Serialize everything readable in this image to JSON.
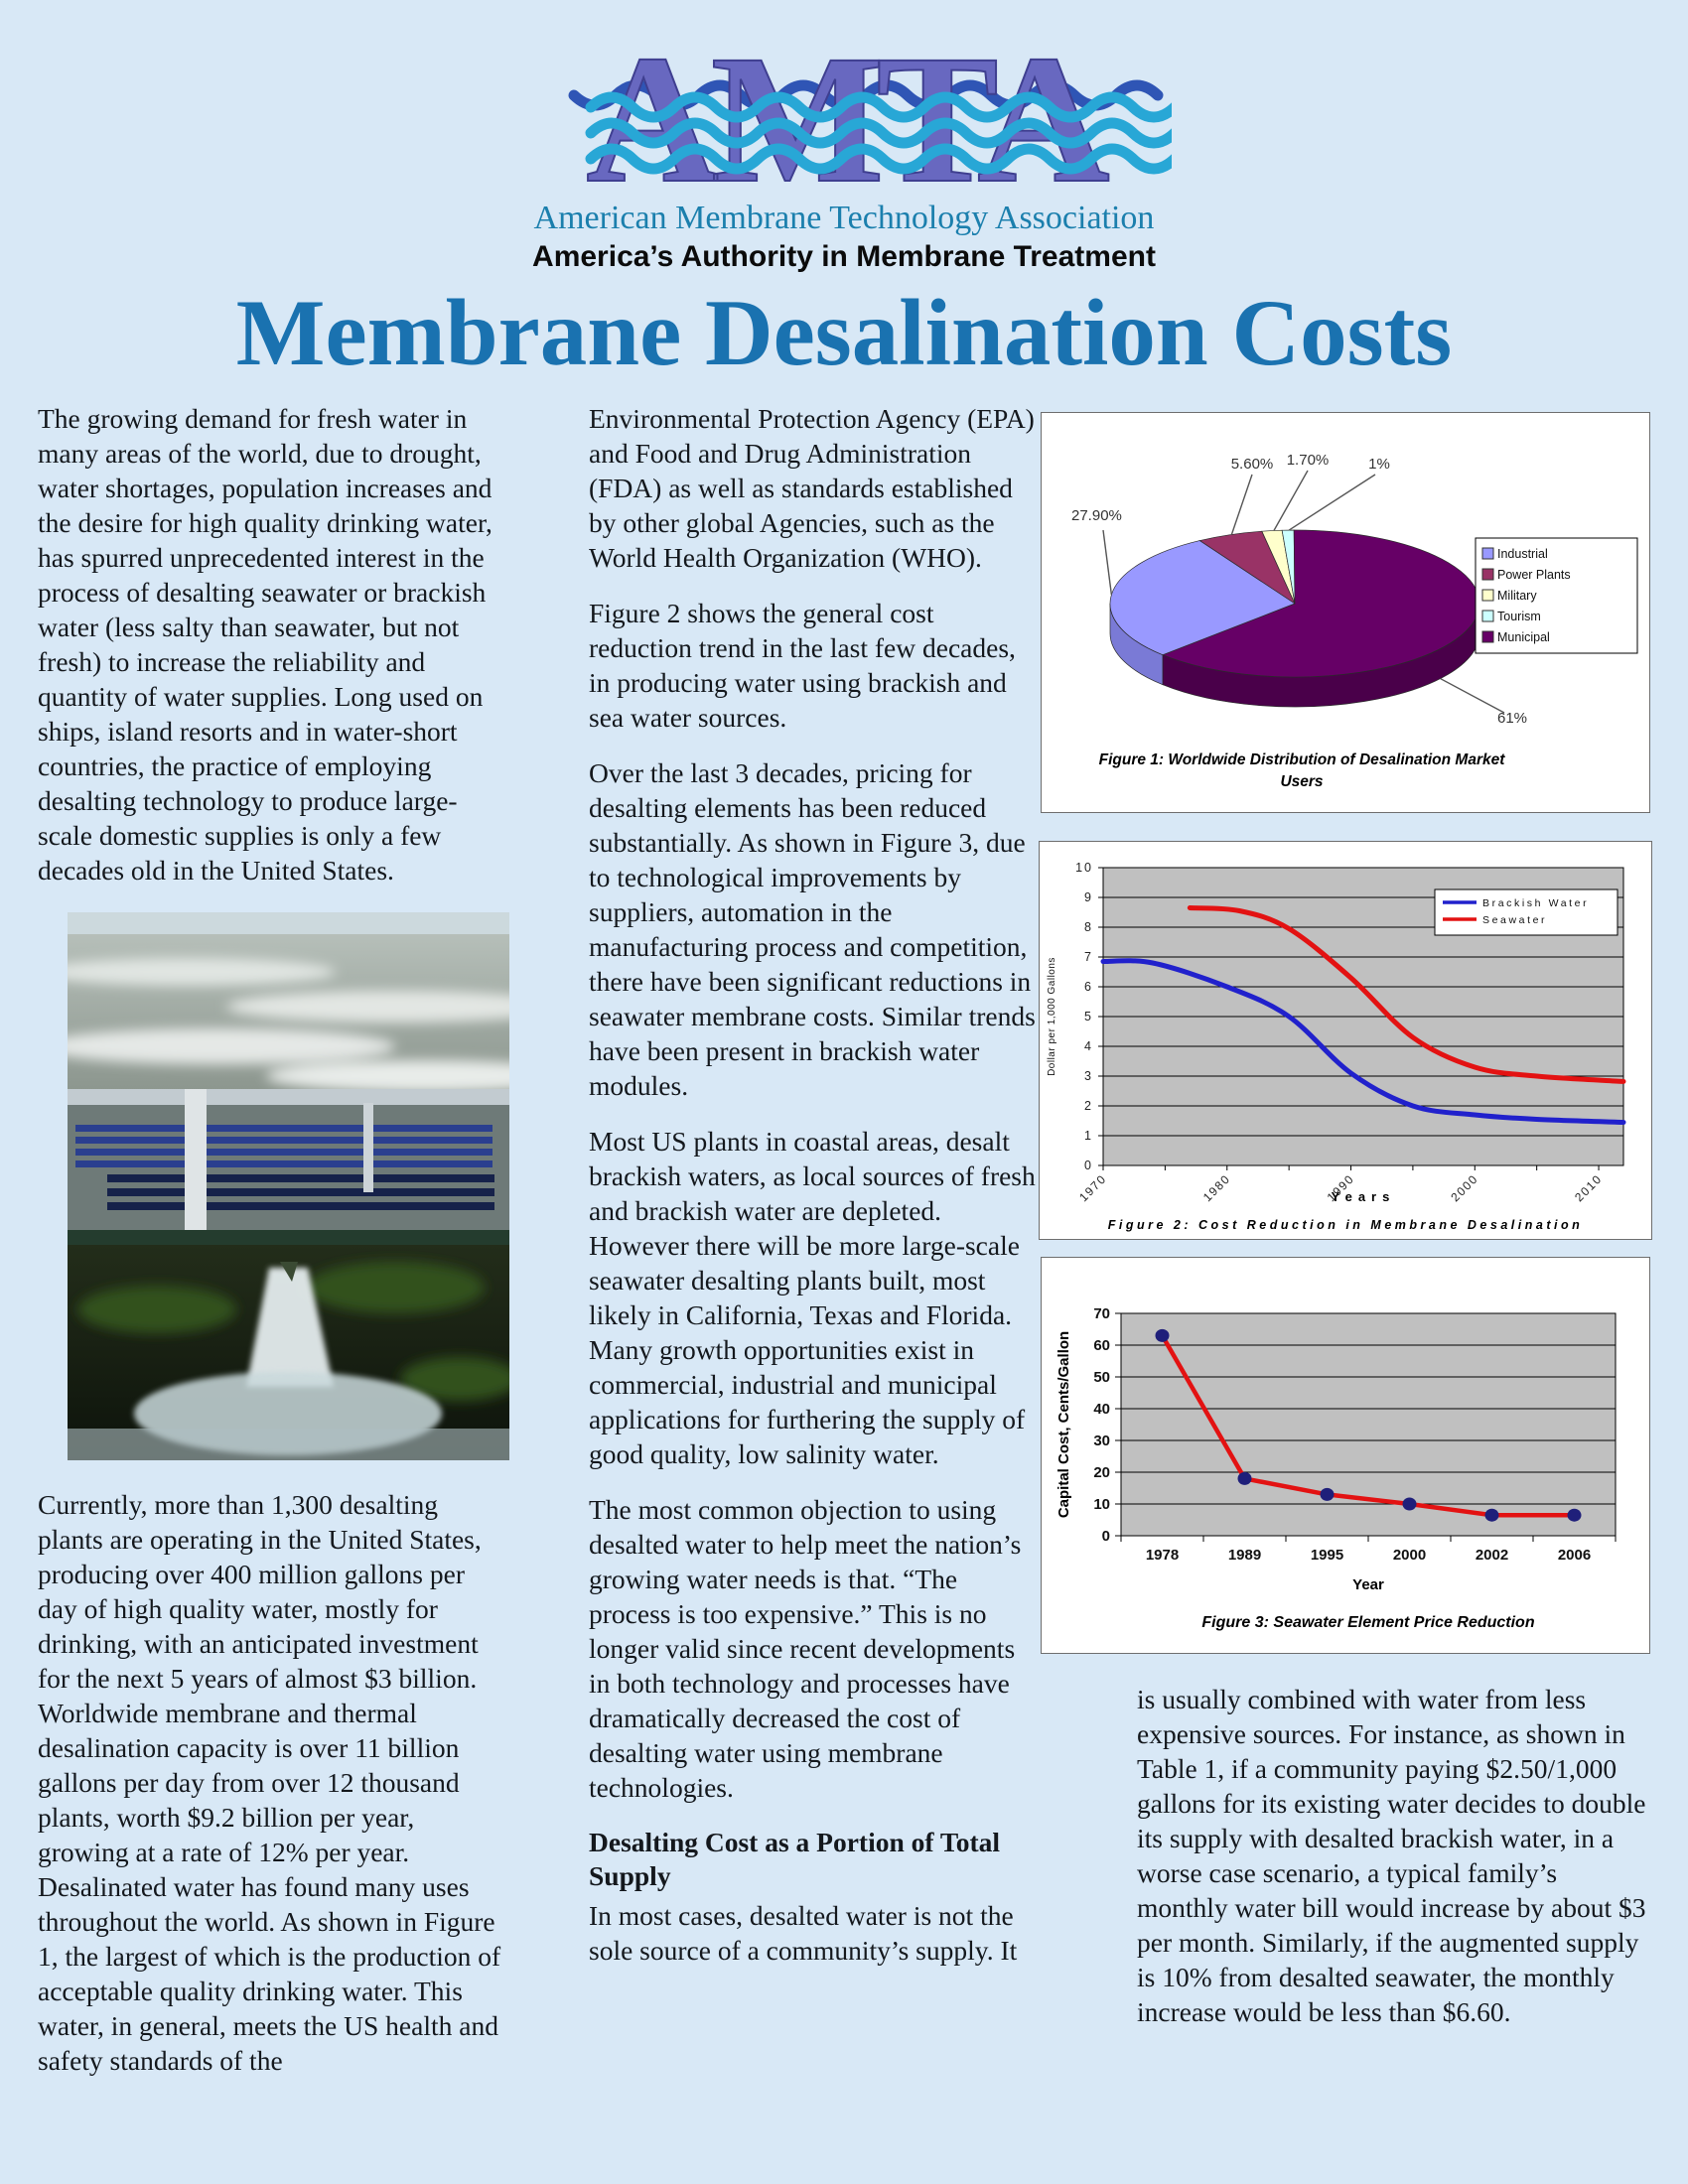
{
  "header": {
    "logo_acronym": "AMTA",
    "logo_org_name": "American Membrane Technology Association",
    "logo_tagline": "America’s Authority in Membrane Treatment"
  },
  "title": "Membrane Desalination Costs",
  "article": {
    "left_column": {
      "para1": "The growing demand for fresh water in many areas of the world, due to drought, water shortages, population increases and the desire for high quality drinking water, has spurred unprecedented interest in the process of desalting seawater or brackish water (less salty than seawater, but not fresh) to increase the reliability and quantity of water supplies. Long used on ships, island resorts and in water-short countries, the practice of employing desalting technology to produce large-scale domestic supplies is only a few decades old in the United States.",
      "para2": "Currently, more than 1,300 desalting plants are operating in the United States, producing over 400 million gallons per day of high quality water, mostly for drinking, with an anticipated investment for the next 5 years of almost $3 billion. Worldwide membrane and thermal desalination capacity is over 11 billion gallons per day from over 12 thousand plants, worth $9.2 billion per year, growing at a rate of 12% per year. Desalinated water has found many uses throughout the world. As shown in Figure 1, the largest of which is the production of acceptable quality drinking water. This water, in general, meets the US health and safety standards of the"
    },
    "middle_column": {
      "para1": "Environmental Protection Agency (EPA) and Food and Drug Administration (FDA) as well as standards established by other global Agencies, such as the World Health Organization (WHO).",
      "para2": "Figure 2 shows the general cost reduction trend in the last few decades, in producing water using brackish and sea water sources.",
      "para3": "Over the last 3 decades, pricing for desalting elements has been reduced substantially. As shown in Figure 3, due to technological improvements by suppliers, automation in the manufacturing process and competition, there have been significant reductions in seawater membrane costs. Similar trends have been present in brackish water modules.",
      "para4": "Most US plants in coastal areas, desalt brackish waters, as local sources of fresh and brackish water are depleted. However there will be more large-scale seawater desalting plants built, most likely in California, Texas and Florida. Many growth opportunities exist in commercial, industrial and municipal applications for furthering the supply of good quality, low salinity water.",
      "para5": "The most common objection to using desalted water to help meet the nation’s growing water needs is that. “The process is too expensive.” This is no longer valid since recent developments in both technology and processes have dramatically decreased the cost of desalting water using membrane technologies.",
      "heading": "Desalting Cost as a Portion of Total Supply",
      "para6": "In most cases, desalted water is not the sole source of a community’s supply. It"
    },
    "right_column": {
      "para1": "is usually combined with water from less expensive sources. For instance, as shown in Table 1, if a community paying $2.50/1,000 gallons for its existing water decides to double its supply with desalted brackish water, in a worse case scenario, a typical family’s monthly water bill would increase by about $3 per month. Similarly, if the augmented supply is 10% from desalted seawater, the monthly increase would be less than $6.60."
    }
  },
  "colors": {
    "page_background": "#d8e8f6",
    "title_blue": "#1a72b0",
    "logo_purple": "#6868c0",
    "logo_wave_cyan": "#28a7d6",
    "logo_wave_blue": "#2f55b5",
    "org_name_teal": "#1b7fad",
    "chart_plot_gray": "#c0c0c0",
    "brackish_line": "#2121cc",
    "seawater_line": "#e31212",
    "fig3_marker_navy": "#1f1f7a"
  },
  "chart_data": [
    {
      "id": "fig1",
      "type": "pie",
      "style": "3d",
      "title": "Figure 1: Worldwide Distribution of Desalination Market Users",
      "title_line1": "Figure 1: Worldwide Distribution of Desalination Market",
      "title_line2": "Users",
      "slices": [
        {
          "label": "Industrial",
          "value": 27.9,
          "display": "27.90%",
          "color": "#9999FF",
          "side": "#7a7ad6"
        },
        {
          "label": "Power Plants",
          "value": 5.6,
          "display": "5.60%",
          "color": "#993366",
          "side": "#7a2952"
        },
        {
          "label": "Military",
          "value": 1.7,
          "display": "1.70%",
          "color": "#FFFFCC",
          "side": "#d9d9a8"
        },
        {
          "label": "Tourism",
          "value": 1.0,
          "display": "1%",
          "color": "#CCFFFF",
          "side": "#a8d9d9"
        },
        {
          "label": "Municipal",
          "value": 61.0,
          "display": "61%",
          "color": "#660066",
          "side": "#4a004a"
        }
      ],
      "legend": [
        "Industrial",
        "Power Plants",
        "Military",
        "Tourism",
        "Municipal"
      ],
      "legend_position": "right"
    },
    {
      "id": "fig2",
      "type": "line",
      "title": "Figure 2: Cost Reduction in Membrane Desalination",
      "xlabel": "Years",
      "ylabel": "Dollar per 1,000 Gallons",
      "xlim": [
        1970,
        2012
      ],
      "ylim": [
        0,
        10
      ],
      "x_ticks": [
        1970,
        1980,
        1990,
        2000,
        2010
      ],
      "y_ticks": [
        0,
        1,
        2,
        3,
        4,
        5,
        6,
        7,
        8,
        9,
        10
      ],
      "grid": "horizontal",
      "plot_bg": "#c0c0c0",
      "legend_position": "top-right",
      "series": [
        {
          "name": "Brackish Water",
          "color": "#2121cc",
          "points": [
            [
              1970,
              6.85
            ],
            [
              1974,
              6.8
            ],
            [
              1980,
              6.0
            ],
            [
              1985,
              5.0
            ],
            [
              1990,
              3.1
            ],
            [
              1995,
              2.0
            ],
            [
              2000,
              1.7
            ],
            [
              2005,
              1.55
            ],
            [
              2012,
              1.45
            ]
          ]
        },
        {
          "name": "Seawater",
          "color": "#e31212",
          "points": [
            [
              1977,
              8.65
            ],
            [
              1981,
              8.55
            ],
            [
              1985,
              7.95
            ],
            [
              1990,
              6.3
            ],
            [
              1995,
              4.3
            ],
            [
              2000,
              3.3
            ],
            [
              2005,
              3.0
            ],
            [
              2012,
              2.82
            ]
          ]
        }
      ]
    },
    {
      "id": "fig3",
      "type": "line",
      "title": "Figure 3: Seawater Element Price Reduction",
      "xlabel": "Year",
      "ylabel": "Capital Cost, Cents/Gallon",
      "categories": [
        "1978",
        "1989",
        "1995",
        "2000",
        "2002",
        "2006"
      ],
      "values": [
        63,
        18,
        13,
        10,
        6.5,
        6.5
      ],
      "ylim": [
        0,
        70
      ],
      "y_ticks": [
        0,
        10,
        20,
        30,
        40,
        50,
        60,
        70
      ],
      "grid": "horizontal",
      "plot_bg": "#c0c0c0",
      "line_color": "#e31212",
      "marker_color": "#1f1f7a"
    }
  ]
}
